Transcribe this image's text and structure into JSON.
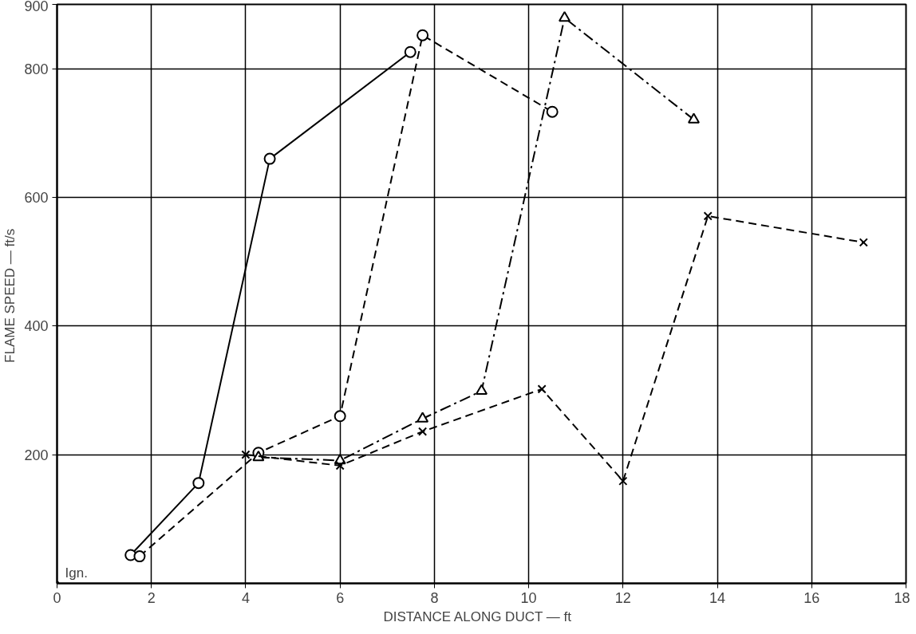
{
  "chart_data": {
    "type": "line",
    "xlabel": "DISTANCE  ALONG  DUCT — ft",
    "ylabel": "FLAME  SPEED — ft/s",
    "xlim": [
      0,
      18
    ],
    "ylim": [
      0,
      900
    ],
    "xticks": [
      0,
      2,
      4,
      6,
      8,
      10,
      12,
      14,
      16,
      18
    ],
    "yticks": [
      200,
      400,
      600,
      800,
      900
    ],
    "grid": true,
    "series": [
      {
        "color": "#000000",
        "marker": "circle",
        "line_style": "solid",
        "x": [
          1.56,
          3.0,
          4.51,
          7.49
        ],
        "values": [
          44,
          156,
          660,
          826
        ]
      },
      {
        "color": "#000000",
        "marker": "circle",
        "line_style": "dashed",
        "x": [
          1.75,
          4.27,
          6.0,
          7.75,
          10.5
        ],
        "values": [
          42,
          203,
          260,
          852,
          733
        ]
      },
      {
        "color": "#000000",
        "marker": "triangle",
        "line_style": "dashdot",
        "x": [
          4.27,
          6.0,
          7.75,
          9.0,
          10.76,
          13.5
        ],
        "values": [
          196,
          191,
          256,
          299,
          879,
          721
        ]
      },
      {
        "color": "#000000",
        "marker": "cross",
        "line_style": "dashed",
        "x": [
          4.0,
          6.0,
          7.75,
          10.28,
          12.0,
          13.8,
          17.1
        ],
        "values": [
          200,
          183,
          236,
          302,
          159,
          571,
          530
        ]
      }
    ],
    "annotations": [
      {
        "text": "Ign.",
        "x": 0,
        "y": 0
      }
    ]
  }
}
